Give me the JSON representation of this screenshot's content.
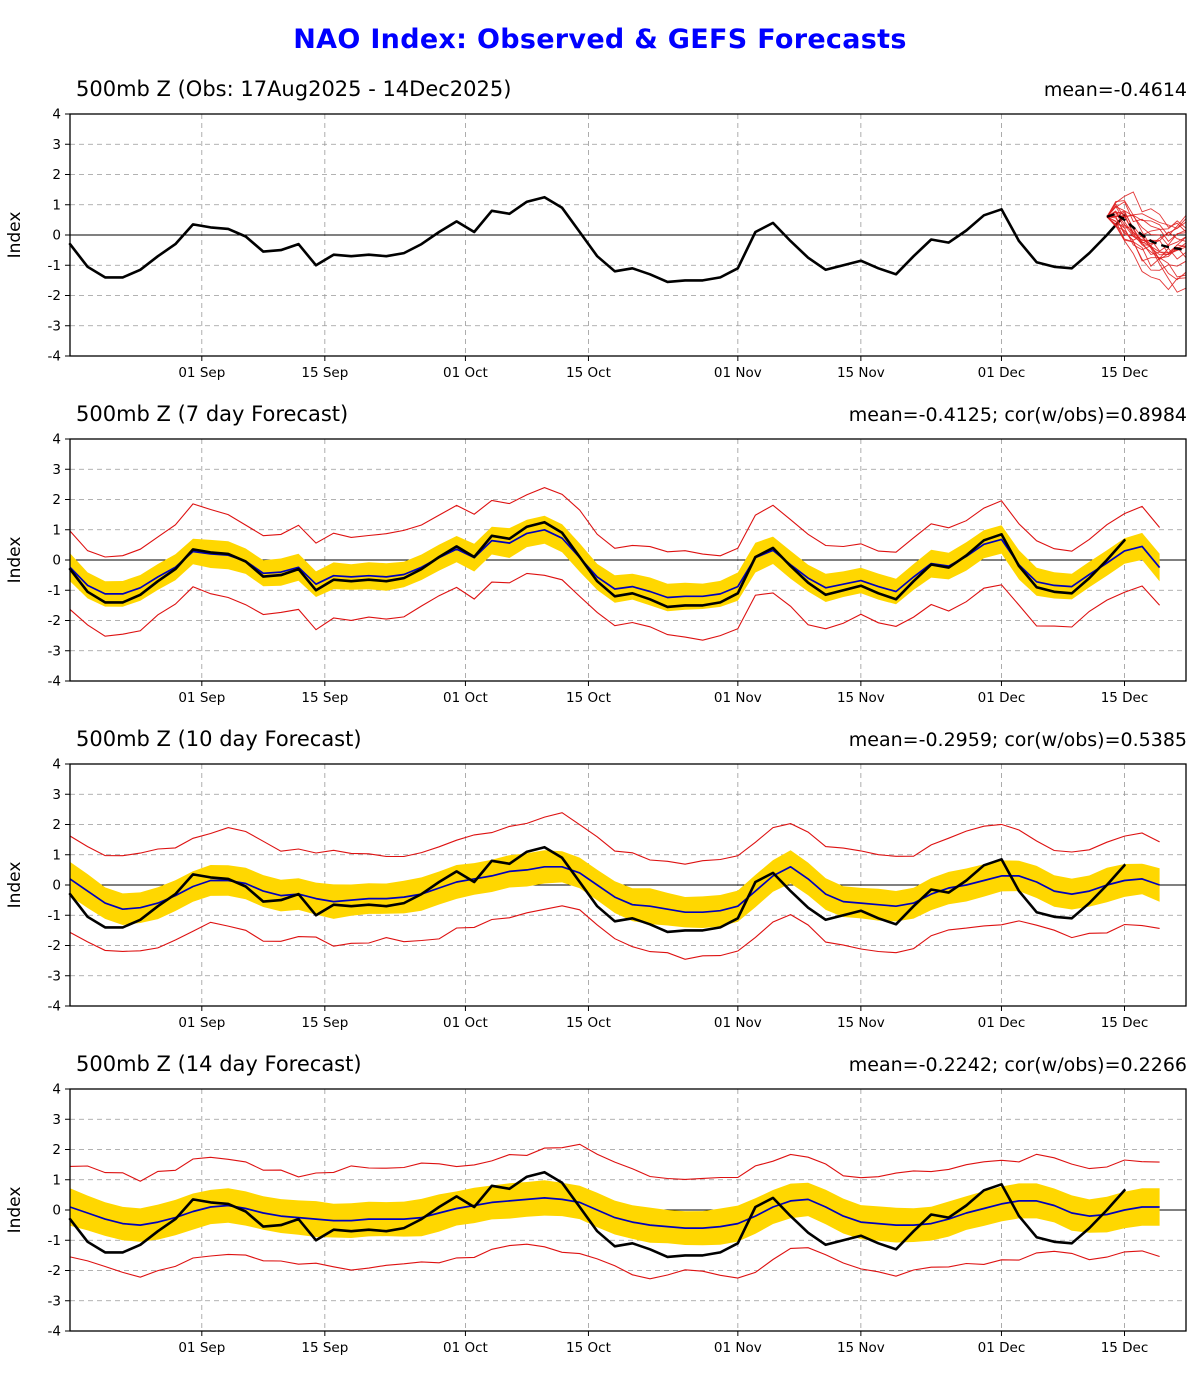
{
  "page": {
    "title": "NAO Index: Observed & GEFS Forecasts"
  },
  "colors": {
    "page_title": "#0000ff",
    "observed": "#000000",
    "forecast_mean": "#0000bb",
    "band": "#ffd700",
    "envelope": "#dd1111",
    "ensemble_member": "#e02020",
    "ensemble_mean": "#000000",
    "grid": "#999999",
    "axis": "#000000"
  },
  "axes": {
    "ylabel": "Index",
    "ylim": [
      -4,
      4
    ],
    "yticks": [
      4,
      3,
      2,
      1,
      0,
      -1,
      -2,
      -3,
      -4
    ],
    "xlim": [
      0,
      127
    ],
    "x_unit": "days since 17 Aug 2025",
    "xticks": [
      {
        "day": 15,
        "label": "01 Sep"
      },
      {
        "day": 29,
        "label": "15 Sep"
      },
      {
        "day": 45,
        "label": "01 Oct"
      },
      {
        "day": 59,
        "label": "15 Oct"
      },
      {
        "day": 76,
        "label": "01 Nov"
      },
      {
        "day": 90,
        "label": "15 Nov"
      },
      {
        "day": 106,
        "label": "01 Dec"
      },
      {
        "day": 120,
        "label": "15 Dec"
      }
    ]
  },
  "chart_data": {
    "type": "line",
    "title": "NAO Index: Observed & GEFS Forecasts",
    "grid": true,
    "observed": {
      "name": "Observed NAO index (500mb Z)",
      "x_start": 0,
      "x_step": 2,
      "values": [
        -0.3,
        -1.05,
        -1.4,
        -1.4,
        -1.15,
        -0.7,
        -0.3,
        0.35,
        0.25,
        0.2,
        -0.05,
        -0.55,
        -0.5,
        -0.3,
        -1.0,
        -0.65,
        -0.7,
        -0.65,
        -0.7,
        -0.6,
        -0.3,
        0.1,
        0.45,
        0.1,
        0.8,
        0.7,
        1.1,
        1.25,
        0.9,
        0.1,
        -0.7,
        -1.2,
        -1.1,
        -1.3,
        -1.55,
        -1.5,
        -1.5,
        -1.4,
        -1.1,
        0.1,
        0.4,
        -0.2,
        -0.75,
        -1.15,
        -1.0,
        -0.85,
        -1.1,
        -1.3,
        -0.7,
        -0.15,
        -0.25,
        0.15,
        0.65,
        0.85,
        -0.2,
        -0.9,
        -1.05,
        -1.1,
        -0.6,
        0.0,
        0.65
      ]
    },
    "panels": [
      {
        "title": "500mb Z (Obs: 17Aug2025 - 14Dec2025)",
        "stats": "mean=-0.4614",
        "ensemble": {
          "x_start": 118,
          "x_step": 1,
          "mean": [
            0.6,
            0.7,
            0.5,
            0.25,
            0.0,
            -0.2,
            -0.32,
            -0.4,
            -0.45,
            -0.5
          ],
          "members": 21,
          "member_step": 0.42,
          "seed": 7
        }
      },
      {
        "title": "500mb Z (7 day Forecast)",
        "stats": "mean=-0.4125; cor(w/obs)=0.8984",
        "forecast": {
          "x_start": 0,
          "x_step": 2,
          "mean": [
            -0.24,
            -0.84,
            -1.12,
            -1.12,
            -0.92,
            -0.56,
            -0.24,
            0.28,
            0.2,
            0.16,
            -0.04,
            -0.44,
            -0.4,
            -0.24,
            -0.8,
            -0.52,
            -0.56,
            -0.52,
            -0.56,
            -0.48,
            -0.24,
            0.08,
            0.36,
            0.08,
            0.64,
            0.56,
            0.88,
            1.0,
            0.72,
            0.08,
            -0.56,
            -0.96,
            -0.88,
            -1.04,
            -1.24,
            -1.2,
            -1.2,
            -1.12,
            -0.88,
            0.08,
            0.32,
            -0.16,
            -0.6,
            -0.92,
            -0.8,
            -0.68,
            -0.88,
            -1.04,
            -0.56,
            -0.12,
            -0.2,
            0.12,
            0.52,
            0.68,
            -0.16,
            -0.72,
            -0.84,
            -0.88,
            -0.48,
            -0.1,
            0.3,
            0.45,
            -0.25
          ],
          "band_halfwidth": 0.42,
          "env_halfwidth": 1.35,
          "env_jitter": 0.3,
          "seed": 11
        }
      },
      {
        "title": "500mb Z (10 day Forecast)",
        "stats": "mean=-0.2959; cor(w/obs)=0.5385",
        "forecast": {
          "x_start": 0,
          "x_step": 2,
          "mean": [
            0.2,
            -0.2,
            -0.6,
            -0.8,
            -0.75,
            -0.6,
            -0.35,
            -0.05,
            0.15,
            0.15,
            0.05,
            -0.2,
            -0.35,
            -0.3,
            -0.45,
            -0.55,
            -0.5,
            -0.45,
            -0.45,
            -0.4,
            -0.3,
            -0.1,
            0.1,
            0.2,
            0.3,
            0.45,
            0.5,
            0.6,
            0.6,
            0.4,
            0.0,
            -0.4,
            -0.65,
            -0.7,
            -0.8,
            -0.9,
            -0.9,
            -0.85,
            -0.7,
            -0.2,
            0.3,
            0.6,
            0.2,
            -0.3,
            -0.55,
            -0.6,
            -0.65,
            -0.7,
            -0.6,
            -0.3,
            -0.1,
            0.0,
            0.15,
            0.3,
            0.3,
            0.1,
            -0.2,
            -0.3,
            -0.2,
            0.0,
            0.15,
            0.2,
            0.0
          ],
          "band_halfwidth": 0.5,
          "env_halfwidth": 1.5,
          "env_jitter": 0.35,
          "seed": 23
        }
      },
      {
        "title": "500mb Z (14 day Forecast)",
        "stats": "mean=-0.2242; cor(w/obs)=0.2266",
        "forecast": {
          "x_start": 0,
          "x_step": 2,
          "mean": [
            0.1,
            -0.1,
            -0.3,
            -0.45,
            -0.5,
            -0.4,
            -0.25,
            -0.05,
            0.1,
            0.15,
            0.05,
            -0.1,
            -0.2,
            -0.25,
            -0.3,
            -0.35,
            -0.35,
            -0.3,
            -0.3,
            -0.3,
            -0.25,
            -0.1,
            0.05,
            0.15,
            0.25,
            0.3,
            0.35,
            0.4,
            0.35,
            0.25,
            0.0,
            -0.25,
            -0.4,
            -0.5,
            -0.55,
            -0.6,
            -0.6,
            -0.55,
            -0.45,
            -0.2,
            0.1,
            0.3,
            0.35,
            0.1,
            -0.2,
            -0.4,
            -0.45,
            -0.5,
            -0.5,
            -0.45,
            -0.3,
            -0.1,
            0.05,
            0.2,
            0.3,
            0.3,
            0.15,
            -0.1,
            -0.2,
            -0.15,
            0.0,
            0.1,
            0.1
          ],
          "band_halfwidth": 0.55,
          "env_halfwidth": 1.6,
          "env_jitter": 0.4,
          "seed": 37
        }
      }
    ]
  }
}
